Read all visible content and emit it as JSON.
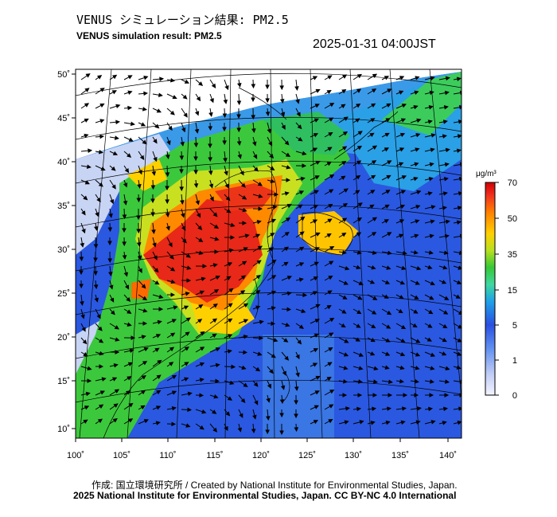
{
  "header": {
    "title_jp": "VENUS シミュレーション結果: PM2.5",
    "title_en": "VENUS simulation result: PM2.5",
    "timestamp": "2025-01-31 04:00JST"
  },
  "map": {
    "lat_labels": [
      "50˚",
      "45˚",
      "40˚",
      "35˚",
      "30˚",
      "25˚",
      "20˚",
      "15˚",
      "10˚"
    ],
    "lon_labels": [
      "100˚",
      "105˚",
      "110˚",
      "115˚",
      "120˚",
      "125˚",
      "130˚",
      "135˚",
      "140˚"
    ],
    "wind_arrows": "shown"
  },
  "colorbar": {
    "unit": "μg/m³",
    "ticks": [
      "70",
      "50",
      "35",
      "15",
      "5",
      "1",
      "0"
    ],
    "colors": [
      "#e8e8f8",
      "#b4c4f0",
      "#5a8cf0",
      "#2850e0",
      "#20a0e8",
      "#40d8a0",
      "#3cc83c",
      "#b8e020",
      "#ffd000",
      "#ff8000",
      "#f03020",
      "#d00000"
    ]
  },
  "footer": {
    "credit_jp": "作成: 国立環境研究所 / Created by National Institute for Environmental Studies, Japan.",
    "credit_en": "2025 National Institute for Environmental Studies, Japan. CC BY-NC 4.0 International"
  }
}
